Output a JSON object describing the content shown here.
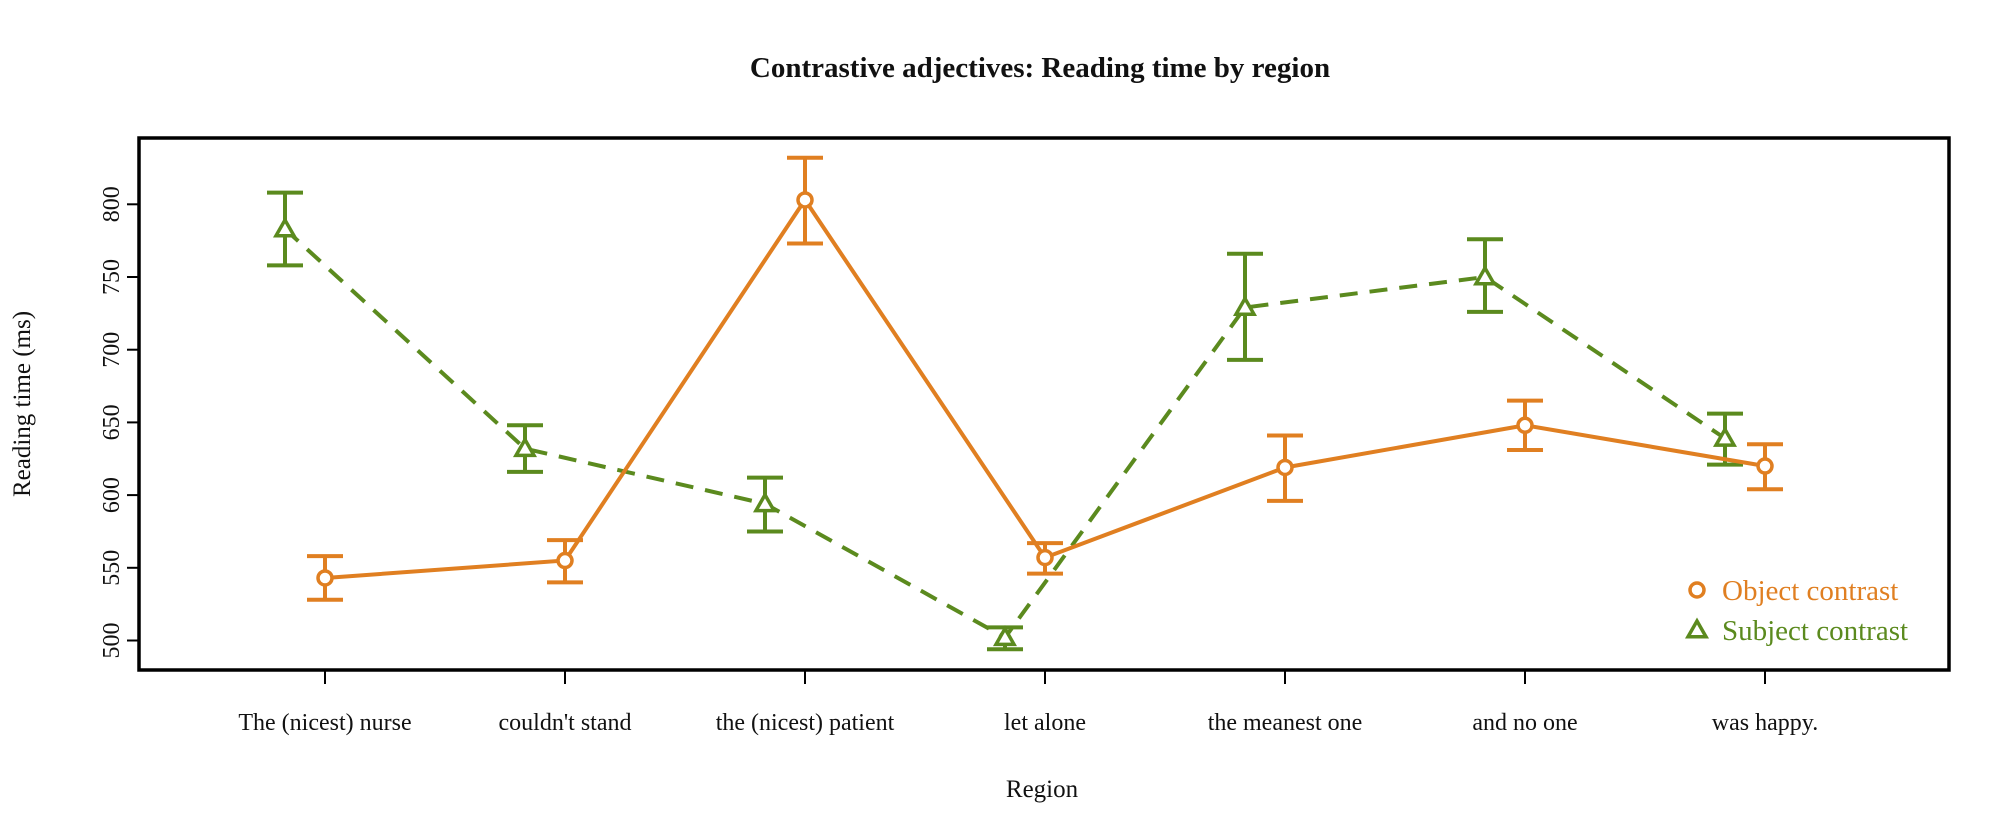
{
  "chart_data": {
    "type": "line",
    "title": "Contrastive adjectives: Reading time by region",
    "xlabel": "Region",
    "ylabel": "Reading time (ms)",
    "categories": [
      "The (nicest) nurse",
      "couldn't stand",
      "the (nicest) patient",
      "let alone",
      "the meanest one",
      "and no one",
      "was happy."
    ],
    "y_ticks": [
      500,
      550,
      600,
      650,
      700,
      750,
      800
    ],
    "ylim": [
      480,
      836
    ],
    "grid": false,
    "legend_position": "bottom-right",
    "series": [
      {
        "name": "Object contrast",
        "color": "#E07F21",
        "marker": "circle",
        "line_style": "solid",
        "values": [
          543,
          555,
          803,
          557,
          619,
          648,
          620
        ],
        "error_low": [
          528,
          540,
          773,
          546,
          596,
          631,
          604
        ],
        "error_high": [
          558,
          569,
          832,
          567,
          641,
          665,
          635
        ]
      },
      {
        "name": "Subject contrast",
        "color": "#5B8A1E",
        "marker": "triangle",
        "line_style": "dashed",
        "values": [
          783,
          632,
          594,
          502,
          729,
          750,
          639
        ],
        "error_low": [
          758,
          616,
          575,
          494,
          693,
          726,
          621
        ],
        "error_high": [
          808,
          648,
          612,
          509,
          766,
          776,
          656
        ]
      }
    ]
  }
}
